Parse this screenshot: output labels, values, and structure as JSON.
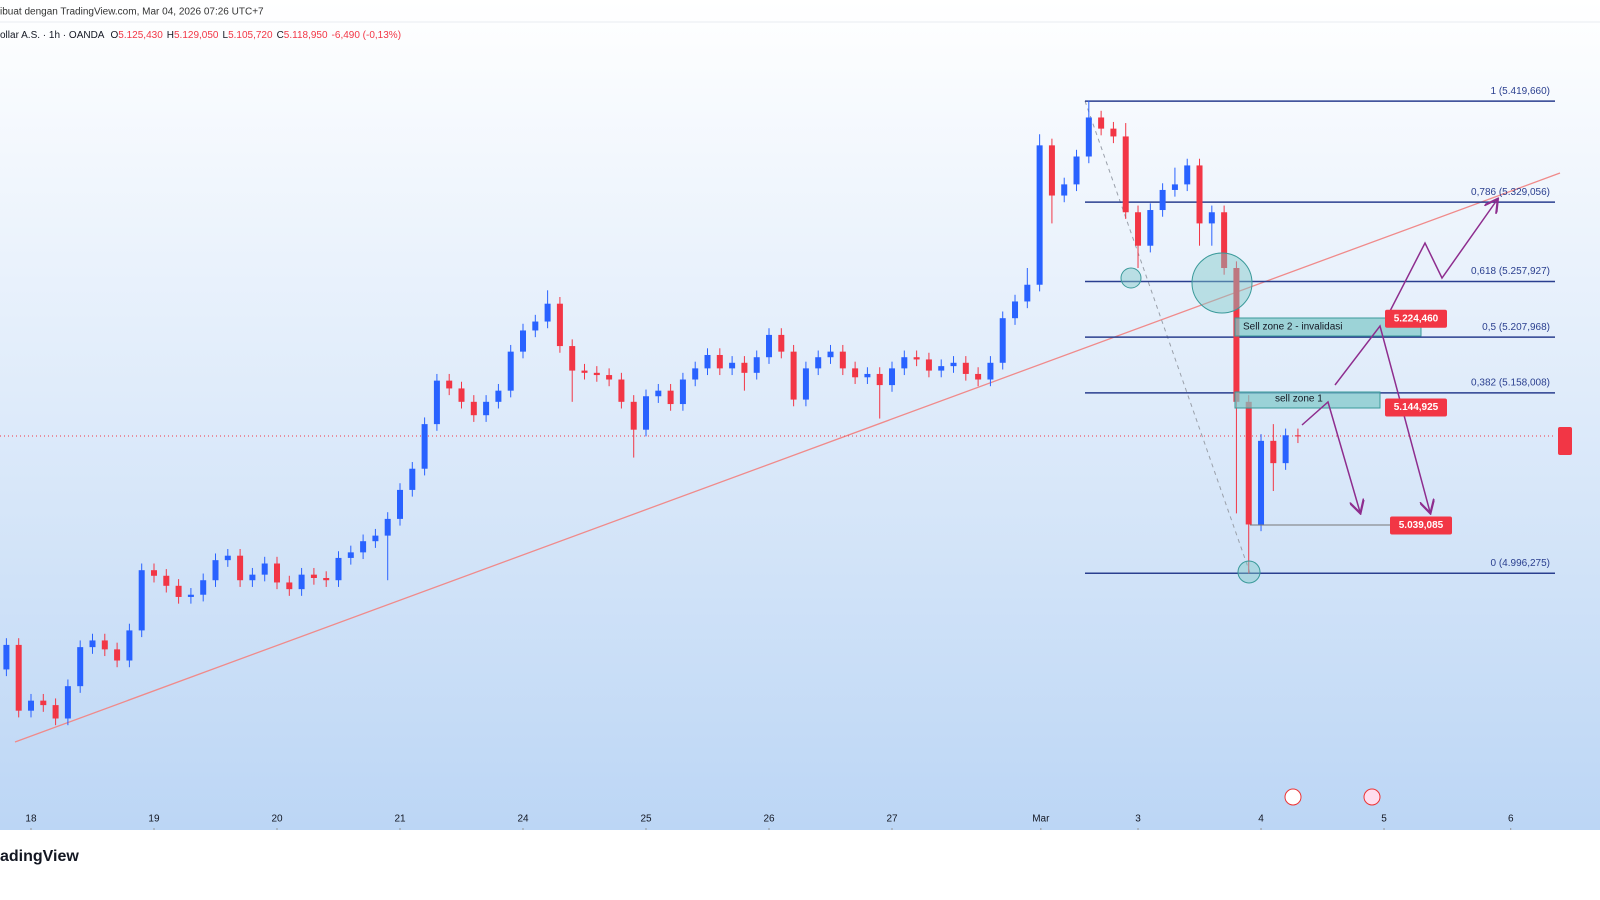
{
  "header": {
    "caption": "ibuat dengan TradingView.com, Mar 04, 2026 07:26 UTC+7",
    "symbol": "ollar A.S. · 1h · OANDA",
    "ohlc": [
      {
        "key": "O",
        "value": "5.125,430"
      },
      {
        "key": "H",
        "value": "5.129,050"
      },
      {
        "key": "L",
        "value": "5.105,720"
      },
      {
        "key": "C",
        "value": "5.118,950"
      }
    ],
    "change": "-6,490 (-0,13%)"
  },
  "footer": {
    "logo": "adingView"
  },
  "chart_data": {
    "type": "candlestick",
    "up_color": "#2962ff",
    "down_color": "#f23645",
    "xlim": [
      -0.252,
      12.39
    ],
    "ylim": [
      4.766,
      5.47
    ],
    "xticks": [
      {
        "value": 0,
        "label": "18"
      },
      {
        "value": 1,
        "label": "19"
      },
      {
        "value": 2,
        "label": "20"
      },
      {
        "value": 3,
        "label": "21"
      },
      {
        "value": 4,
        "label": "24"
      },
      {
        "value": 5,
        "label": "25"
      },
      {
        "value": 6,
        "label": "26"
      },
      {
        "value": 7,
        "label": "27"
      },
      {
        "value": 8.21,
        "label": "Mar"
      },
      {
        "value": 9,
        "label": "3"
      },
      {
        "value": 10,
        "label": "4"
      },
      {
        "value": 11,
        "label": "5"
      },
      {
        "value": 12.03,
        "label": "6"
      }
    ],
    "x": [
      -0.2,
      -0.1,
      0,
      0.1,
      0.2,
      0.3,
      0.4,
      0.5,
      0.6,
      0.7,
      0.8,
      0.9,
      1,
      1.1,
      1.2,
      1.3,
      1.4,
      1.5,
      1.6,
      1.7,
      1.8,
      1.9,
      2,
      2.1,
      2.2,
      2.3,
      2.4,
      2.5,
      2.6,
      2.7,
      2.8,
      2.9,
      3,
      3.1,
      3.2,
      3.3,
      3.4,
      3.5,
      3.6,
      3.7,
      3.8,
      3.9,
      4,
      4.1,
      4.2,
      4.3,
      4.4,
      4.5,
      4.6,
      4.7,
      4.8,
      4.9,
      5,
      5.1,
      5.2,
      5.3,
      5.4,
      5.5,
      5.6,
      5.7,
      5.8,
      5.9,
      6,
      6.1,
      6.2,
      6.3,
      6.4,
      6.5,
      6.6,
      6.7,
      6.8,
      6.9,
      7,
      7.1,
      7.2,
      7.3,
      7.4,
      7.5,
      7.6,
      7.7,
      7.8,
      7.9,
      8,
      8.1,
      8.2,
      8.3,
      8.4,
      8.5,
      8.6,
      8.7,
      8.8,
      8.9,
      9,
      9.1,
      9.2,
      9.3,
      9.4,
      9.5,
      9.6,
      9.7,
      9.8,
      9.9,
      10,
      10.1,
      10.2,
      10.3
    ],
    "open": [
      4.91,
      4.932,
      4.873,
      4.882,
      4.878,
      4.866,
      4.895,
      4.93,
      4.936,
      4.928,
      4.918,
      4.945,
      4.999,
      4.994,
      4.985,
      4.975,
      4.977,
      4.99,
      5.008,
      5.012,
      4.99,
      4.995,
      5.005,
      4.988,
      4.982,
      4.995,
      4.992,
      4.99,
      5.01,
      5.015,
      5.025,
      5.03,
      5.045,
      5.071,
      5.09,
      5.13,
      5.169,
      5.162,
      5.15,
      5.138,
      5.15,
      5.16,
      5.195,
      5.214,
      5.222,
      5.238,
      5.2,
      5.178,
      5.176,
      5.174,
      5.17,
      5.15,
      5.125,
      5.155,
      5.16,
      5.148,
      5.17,
      5.18,
      5.192,
      5.18,
      5.185,
      5.176,
      5.19,
      5.21,
      5.195,
      5.152,
      5.18,
      5.19,
      5.195,
      5.18,
      5.172,
      5.175,
      5.165,
      5.18,
      5.19,
      5.188,
      5.178,
      5.182,
      5.185,
      5.175,
      5.17,
      5.185,
      5.225,
      5.24,
      5.255,
      5.38,
      5.335,
      5.345,
      5.37,
      5.405,
      5.395,
      5.388,
      5.32,
      5.29,
      5.322,
      5.34,
      5.345,
      5.362,
      5.31,
      5.32,
      5.27,
      5.15,
      5.04,
      5.115,
      5.095,
      5.12
    ],
    "high": [
      4.938,
      4.938,
      4.888,
      4.888,
      4.884,
      4.901,
      4.936,
      4.942,
      4.942,
      4.934,
      4.951,
      5.005,
      5.005,
      5.0,
      4.991,
      4.983,
      4.996,
      5.014,
      5.018,
      5.018,
      5.001,
      5.011,
      5.011,
      4.994,
      5.001,
      5.001,
      4.998,
      5.016,
      5.021,
      5.031,
      5.036,
      5.051,
      5.077,
      5.096,
      5.136,
      5.175,
      5.175,
      5.168,
      5.156,
      5.156,
      5.166,
      5.201,
      5.22,
      5.228,
      5.25,
      5.244,
      5.206,
      5.184,
      5.182,
      5.18,
      5.176,
      5.156,
      5.161,
      5.166,
      5.166,
      5.176,
      5.186,
      5.198,
      5.198,
      5.191,
      5.191,
      5.196,
      5.216,
      5.216,
      5.201,
      5.186,
      5.196,
      5.201,
      5.201,
      5.186,
      5.181,
      5.181,
      5.186,
      5.196,
      5.196,
      5.194,
      5.188,
      5.191,
      5.191,
      5.181,
      5.191,
      5.231,
      5.246,
      5.27,
      5.39,
      5.386,
      5.351,
      5.376,
      5.42,
      5.411,
      5.401,
      5.4,
      5.326,
      5.328,
      5.346,
      5.36,
      5.368,
      5.368,
      5.326,
      5.326,
      5.276,
      5.156,
      5.121,
      5.13,
      5.126,
      5.126
    ],
    "low": [
      4.904,
      4.867,
      4.867,
      4.872,
      4.86,
      4.86,
      4.889,
      4.924,
      4.922,
      4.912,
      4.912,
      4.939,
      4.988,
      4.979,
      4.969,
      4.969,
      4.971,
      4.984,
      5.002,
      4.984,
      4.984,
      4.989,
      4.982,
      4.976,
      4.976,
      4.986,
      4.984,
      4.984,
      5.004,
      5.009,
      5.019,
      4.99,
      5.039,
      5.065,
      5.084,
      5.124,
      5.156,
      5.144,
      5.132,
      5.132,
      5.144,
      5.154,
      5.189,
      5.208,
      5.216,
      5.194,
      5.15,
      5.17,
      5.168,
      5.164,
      5.144,
      5.1,
      5.119,
      5.149,
      5.142,
      5.142,
      5.164,
      5.174,
      5.174,
      5.174,
      5.16,
      5.17,
      5.184,
      5.189,
      5.146,
      5.146,
      5.174,
      5.184,
      5.174,
      5.166,
      5.166,
      5.135,
      5.159,
      5.174,
      5.182,
      5.172,
      5.172,
      5.176,
      5.169,
      5.164,
      5.164,
      5.179,
      5.219,
      5.234,
      5.249,
      5.31,
      5.329,
      5.339,
      5.364,
      5.389,
      5.382,
      5.314,
      5.27,
      5.284,
      5.316,
      5.334,
      5.339,
      5.29,
      5.29,
      5.264,
      5.05,
      4.996,
      5.034,
      5.07,
      5.089,
      5.113
    ],
    "close": [
      4.932,
      4.873,
      4.882,
      4.878,
      4.866,
      4.895,
      4.93,
      4.936,
      4.928,
      4.918,
      4.945,
      4.999,
      4.994,
      4.985,
      4.975,
      4.977,
      4.99,
      5.008,
      5.012,
      4.99,
      4.995,
      5.005,
      4.988,
      4.982,
      4.995,
      4.992,
      4.99,
      5.01,
      5.015,
      5.025,
      5.03,
      5.045,
      5.071,
      5.09,
      5.13,
      5.169,
      5.162,
      5.15,
      5.138,
      5.15,
      5.16,
      5.195,
      5.214,
      5.222,
      5.238,
      5.2,
      5.178,
      5.176,
      5.174,
      5.17,
      5.15,
      5.125,
      5.155,
      5.16,
      5.148,
      5.17,
      5.18,
      5.192,
      5.18,
      5.185,
      5.176,
      5.19,
      5.21,
      5.195,
      5.152,
      5.18,
      5.19,
      5.195,
      5.18,
      5.172,
      5.175,
      5.165,
      5.18,
      5.19,
      5.188,
      5.178,
      5.182,
      5.185,
      5.175,
      5.17,
      5.185,
      5.225,
      5.24,
      5.255,
      5.38,
      5.335,
      5.345,
      5.37,
      5.405,
      5.395,
      5.388,
      5.32,
      5.29,
      5.322,
      5.34,
      5.345,
      5.362,
      5.31,
      5.32,
      5.27,
      5.15,
      5.04,
      5.115,
      5.095,
      5.12,
      5.119
    ],
    "fib_levels": [
      {
        "value": 5.41966,
        "label": "1 (5.419,660)"
      },
      {
        "value": 5.329056,
        "label": "0,786 (5.329,056)"
      },
      {
        "value": 5.257927,
        "label": "0,618 (5.257,927)"
      },
      {
        "value": 5.207968,
        "label": "0,5 (5.207,968)"
      },
      {
        "value": 5.158008,
        "label": "0,382 (5.158,008)"
      },
      {
        "value": 4.996275,
        "label": "0 (4.996,275)"
      }
    ],
    "price_callouts": [
      {
        "value": 5.22446,
        "label": "5.224,460"
      },
      {
        "value": 5.144925,
        "label": "5.144,925"
      },
      {
        "value": 5.039085,
        "label": "5.039,085"
      }
    ],
    "zones": [
      "Sell zone 2 - invalidasi",
      "sell zone 1"
    ]
  }
}
